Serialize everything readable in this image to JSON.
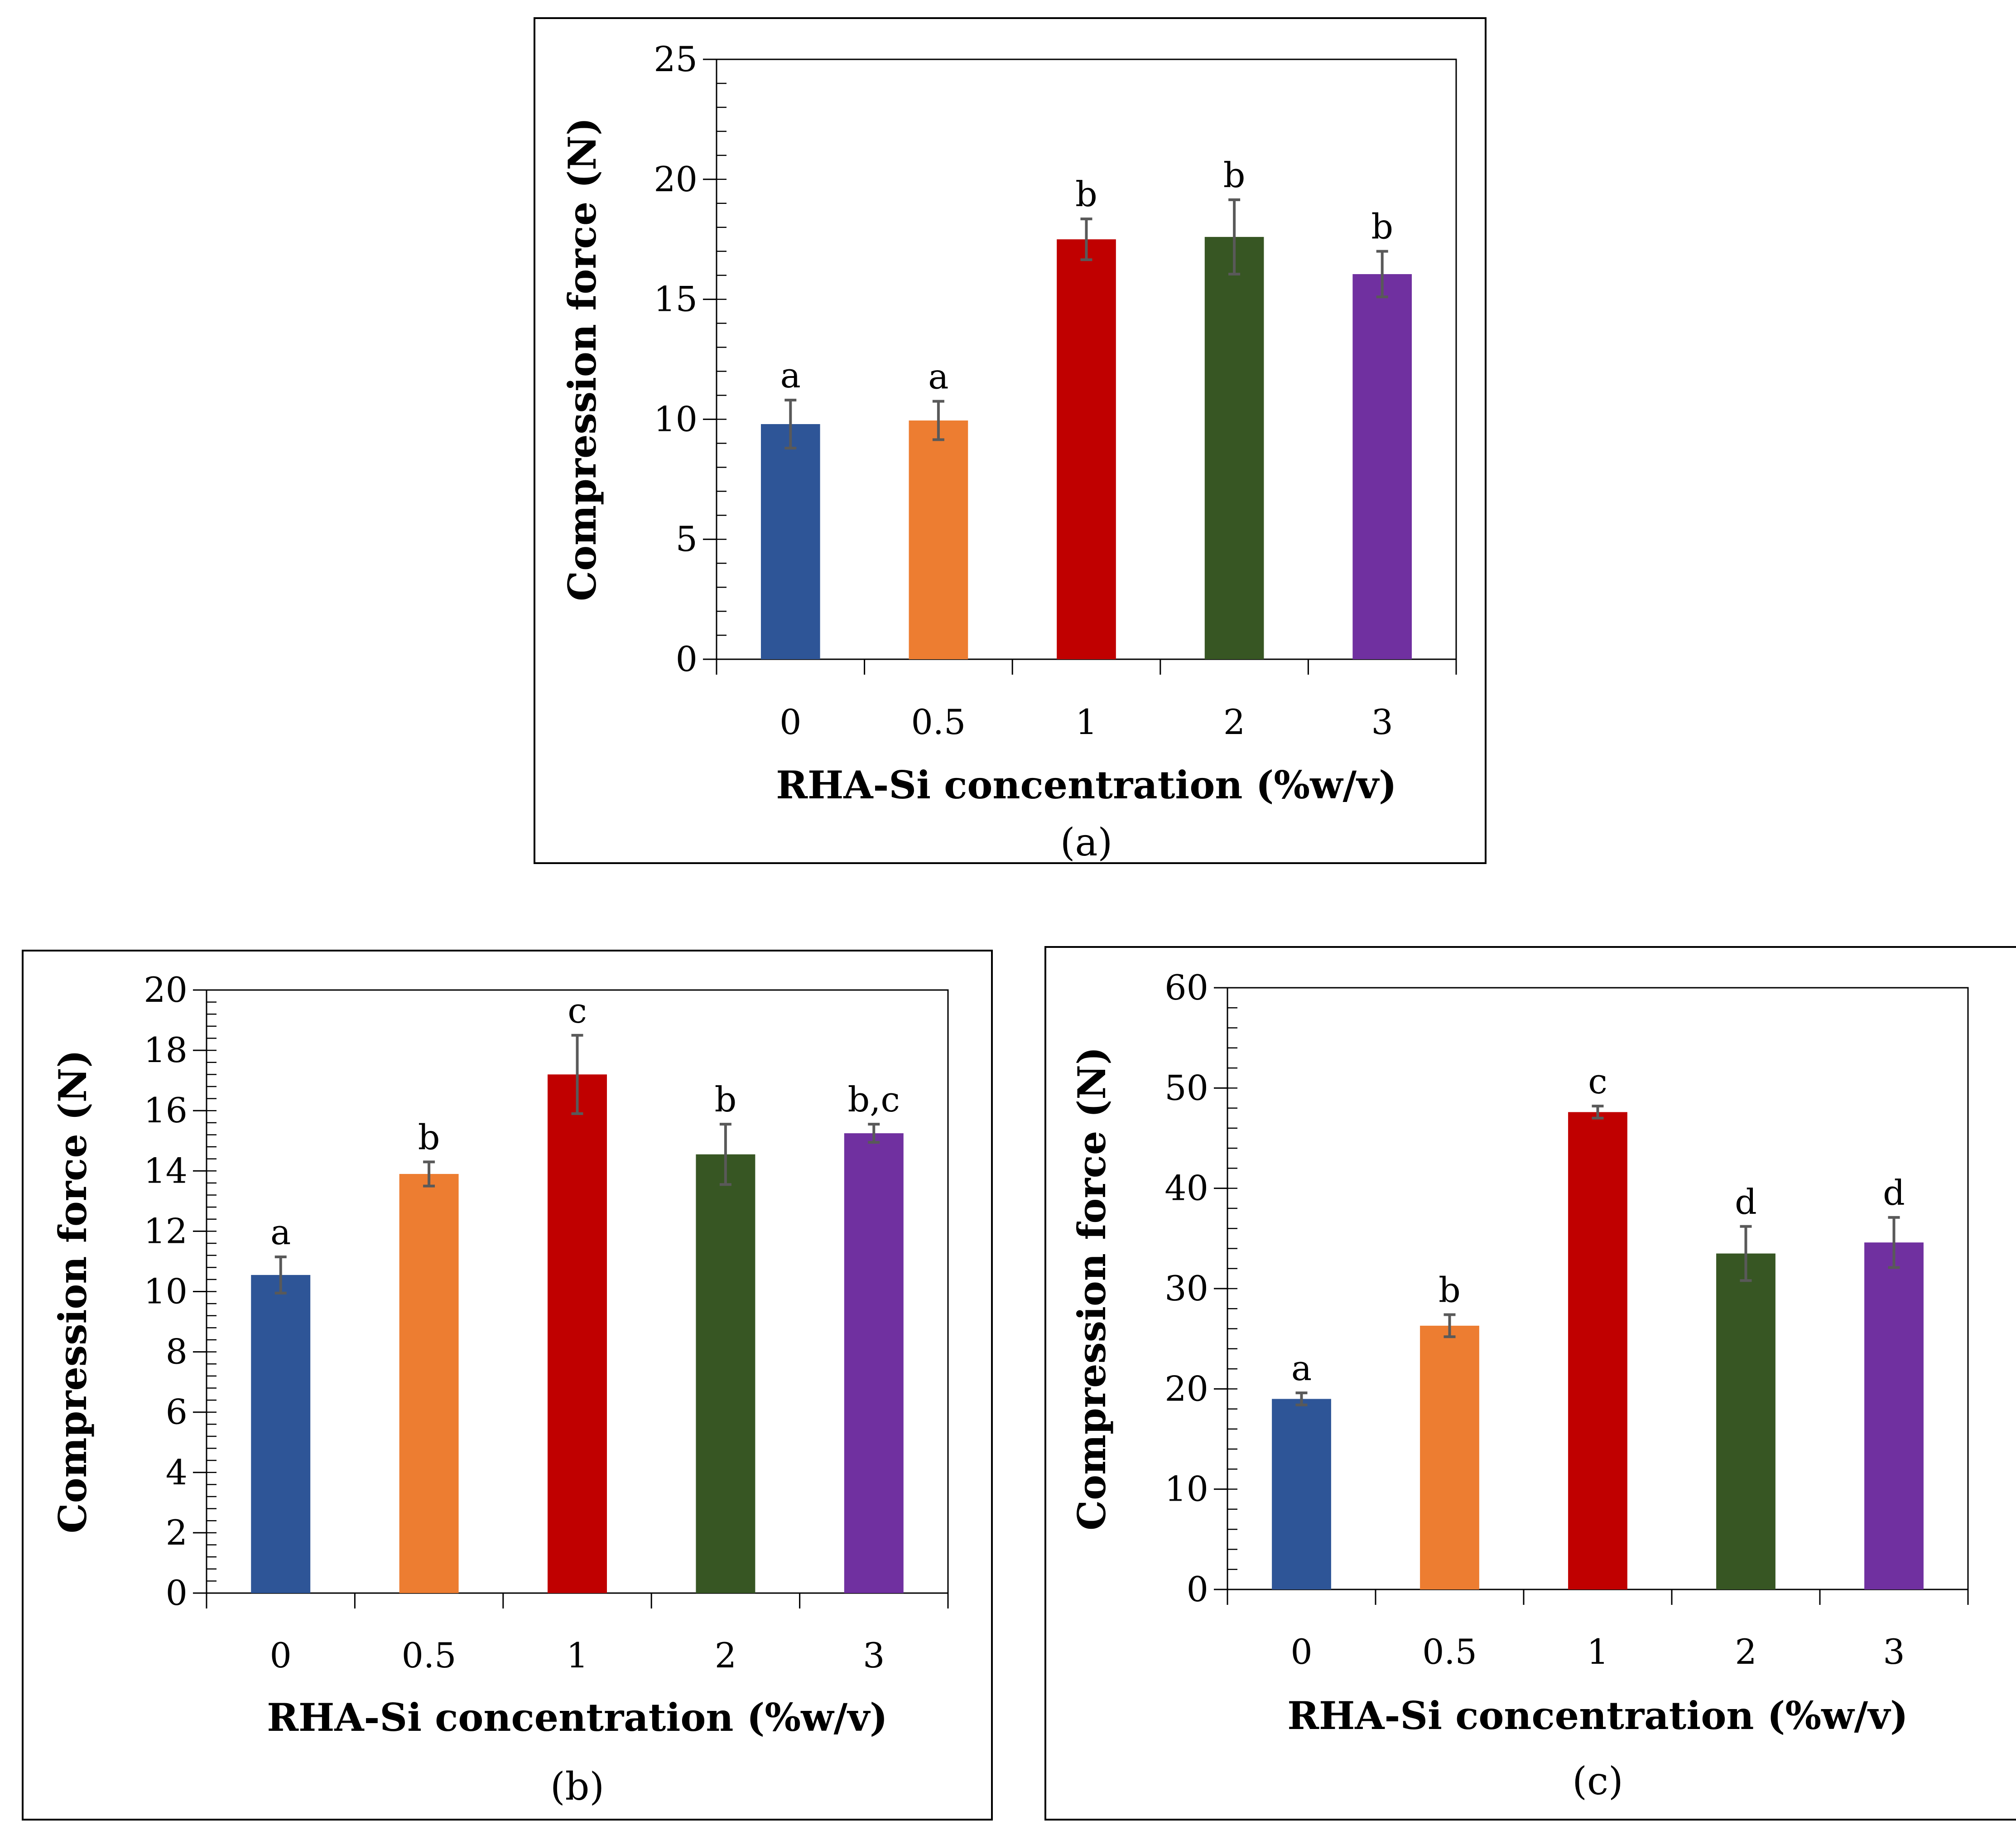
{
  "chart_data": [
    {
      "type": "bar",
      "panel": "(a)",
      "categories": [
        "0",
        "0.5",
        "1",
        "2",
        "3"
      ],
      "values": [
        9.8,
        9.95,
        17.5,
        17.6,
        16.05
      ],
      "errors": [
        1.0,
        0.8,
        0.85,
        1.55,
        0.95
      ],
      "significance": [
        "a",
        "a",
        "b",
        "b",
        "b"
      ],
      "colors": [
        "#2e5597",
        "#ed7d31",
        "#c00000",
        "#375623",
        "#7030a0"
      ],
      "xlabel": "RHA-Si concentration (%w/v)",
      "ylabel": "Compression force (N)",
      "ylim": [
        0,
        25
      ],
      "yticks": [
        0,
        5,
        10,
        15,
        20,
        25
      ],
      "minor_step": 1
    },
    {
      "type": "bar",
      "panel": "(b)",
      "categories": [
        "0",
        "0.5",
        "1",
        "2",
        "3"
      ],
      "values": [
        10.55,
        13.9,
        17.2,
        14.55,
        15.25
      ],
      "errors": [
        0.6,
        0.4,
        1.3,
        1.0,
        0.3
      ],
      "significance": [
        "a",
        "b",
        "c",
        "b",
        "b,c"
      ],
      "colors": [
        "#2e5597",
        "#ed7d31",
        "#c00000",
        "#375623",
        "#7030a0"
      ],
      "xlabel": "RHA-Si concentration (%w/v)",
      "ylabel": "Compression force (N)",
      "ylim": [
        0,
        20
      ],
      "yticks": [
        0,
        2,
        4,
        6,
        8,
        10,
        12,
        14,
        16,
        18,
        20
      ],
      "minor_step": 0.4
    },
    {
      "type": "bar",
      "panel": "(c)",
      "categories": [
        "0",
        "0.5",
        "1",
        "2",
        "3"
      ],
      "values": [
        19.0,
        26.3,
        47.6,
        33.5,
        34.6
      ],
      "errors": [
        0.6,
        1.1,
        0.6,
        2.7,
        2.5
      ],
      "significance": [
        "a",
        "b",
        "c",
        "d",
        "d"
      ],
      "colors": [
        "#2e5597",
        "#ed7d31",
        "#c00000",
        "#375623",
        "#7030a0"
      ],
      "xlabel": "RHA-Si concentration (%w/v)",
      "ylabel": "Compression force (N)",
      "ylim": [
        0,
        60
      ],
      "yticks": [
        0,
        10,
        20,
        30,
        40,
        50,
        60
      ],
      "minor_step": 2
    }
  ]
}
